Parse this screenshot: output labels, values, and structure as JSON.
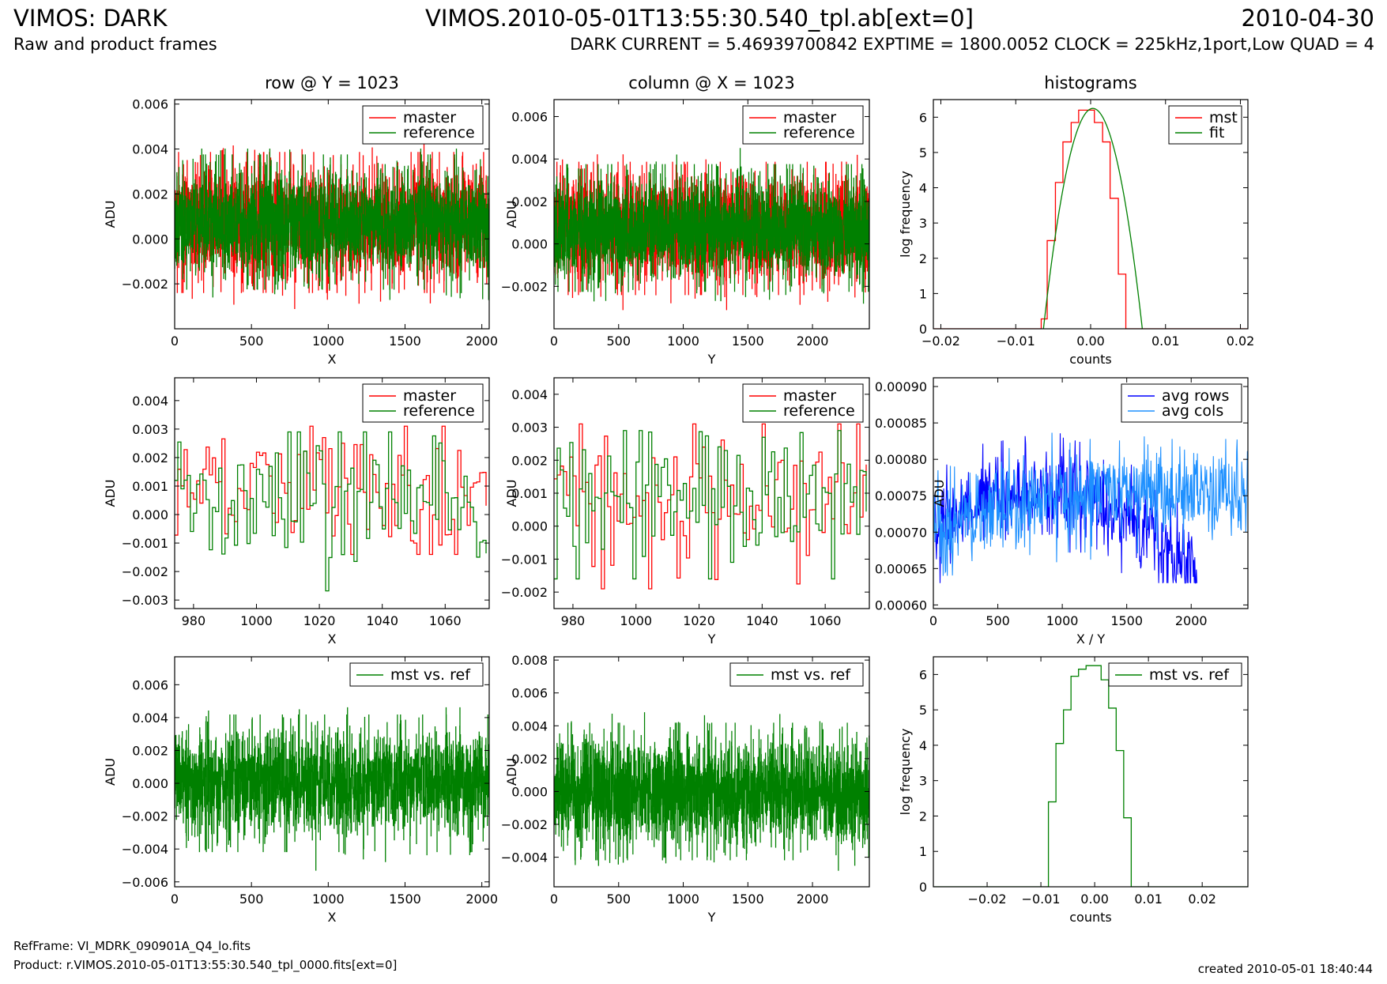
{
  "header": {
    "title_left": "VIMOS: DARK",
    "title_center": "VIMOS.2010-05-01T13:55:30.540_tpl.ab[ext=0]",
    "title_right": "2010-04-30",
    "subtitle_left": "Raw and product frames",
    "subtitle_right": "DARK CURRENT = 5.46939700842 EXPTIME = 1800.0052 CLOCK = 225kHz,1port,Low QUAD = 4"
  },
  "footer": {
    "refframe": "RefFrame: VI_MDRK_090901A_Q4_lo.fits",
    "product": "Product: r.VIMOS.2010-05-01T13:55:30.540_tpl_0000.fits[ext=0]",
    "created": "created 2010-05-01 18:40:44"
  },
  "colors": {
    "master": "#ff0000",
    "reference": "#008000",
    "avg_rows": "#0000ff",
    "avg_cols": "#1e90ff"
  },
  "chart_data": [
    {
      "id": "row-full",
      "type": "line",
      "title": "row @ Y = 1023",
      "xlabel": "X",
      "ylabel": "ADU",
      "xlim": [
        0,
        2048
      ],
      "ylim": [
        -0.004,
        0.0062
      ],
      "xticks": [
        0,
        500,
        1000,
        1500,
        2000
      ],
      "yticks": [
        -0.002,
        0.0,
        0.002,
        0.004,
        0.006
      ],
      "ytick_labels": [
        "−0.002",
        "0.000",
        "0.002",
        "0.004",
        "0.006"
      ],
      "legend": "top-right",
      "step": true,
      "series": [
        {
          "name": "master",
          "color": "#ff0000",
          "gen": {
            "n": 2048,
            "center": 0.00073,
            "spread": 0.0012,
            "min": -0.0031,
            "max": 0.0042,
            "seed": 11
          }
        },
        {
          "name": "reference",
          "color": "#008000",
          "gen": {
            "n": 2048,
            "center": 0.00075,
            "spread": 0.00115,
            "min": -0.0027,
            "max": 0.004,
            "seed": 12
          }
        }
      ]
    },
    {
      "id": "col-full",
      "type": "line",
      "title": "column @ X = 1023",
      "xlabel": "Y",
      "ylabel": "ADU",
      "xlim": [
        0,
        2440
      ],
      "ylim": [
        -0.004,
        0.0068
      ],
      "xticks": [
        0,
        500,
        1000,
        1500,
        2000
      ],
      "yticks": [
        -0.002,
        0.0,
        0.002,
        0.004,
        0.006
      ],
      "ytick_labels": [
        "−0.002",
        "0.000",
        "0.002",
        "0.004",
        "0.006"
      ],
      "legend": "top-right",
      "step": true,
      "series": [
        {
          "name": "master",
          "color": "#ff0000",
          "gen": {
            "n": 2440,
            "center": 0.00073,
            "spread": 0.0012,
            "min": -0.0031,
            "max": 0.0042,
            "seed": 21
          }
        },
        {
          "name": "reference",
          "color": "#008000",
          "gen": {
            "n": 2440,
            "center": 0.00075,
            "spread": 0.00115,
            "min": -0.0033,
            "max": 0.0045,
            "seed": 22
          }
        }
      ]
    },
    {
      "id": "hist-top",
      "type": "line",
      "title": "histograms",
      "xlabel": "counts",
      "ylabel": "log frequency",
      "xlim": [
        -0.021,
        0.021
      ],
      "ylim": [
        0,
        6.5
      ],
      "xticks": [
        -0.02,
        -0.01,
        0.0,
        0.01,
        0.02
      ],
      "xtick_labels": [
        "−0.02",
        "−0.01",
        "0.00",
        "0.01",
        "0.02"
      ],
      "yticks": [
        0,
        1,
        2,
        3,
        4,
        5,
        6
      ],
      "ytick_labels": [
        "0",
        "1",
        "2",
        "3",
        "4",
        "5",
        "6"
      ],
      "legend": "top-right",
      "series": [
        {
          "name": "mst",
          "color": "#ff0000",
          "step": true,
          "x": [
            -0.021,
            -0.0066,
            -0.0066,
            -0.0058,
            -0.0058,
            -0.0047,
            -0.0047,
            -0.0037,
            -0.0037,
            -0.0026,
            -0.0026,
            -0.0016,
            -0.0016,
            -0.0005,
            -0.0005,
            0.0005,
            0.0005,
            0.0016,
            0.0016,
            0.0026,
            0.0026,
            0.0037,
            0.0037,
            0.0047,
            0.0047,
            0.021
          ],
          "y": [
            0,
            0,
            0.28,
            0.28,
            2.5,
            2.5,
            4.15,
            4.15,
            5.3,
            5.3,
            5.85,
            5.85,
            6.2,
            6.2,
            6.2,
            6.2,
            5.85,
            5.85,
            5.3,
            5.3,
            3.7,
            3.7,
            1.55,
            1.55,
            0,
            0
          ]
        },
        {
          "name": "fit",
          "color": "#008000",
          "curve": {
            "peak": 6.25,
            "center": 0.0003,
            "half_width": 0.0066,
            "xmin": -0.021,
            "xmax": 0.021
          }
        }
      ]
    },
    {
      "id": "row-zoom",
      "type": "line",
      "title": "",
      "xlabel": "X",
      "ylabel": "ADU",
      "xlim": [
        974,
        1074
      ],
      "ylim": [
        -0.0033,
        0.0048
      ],
      "xticks": [
        980,
        1000,
        1020,
        1040,
        1060
      ],
      "yticks": [
        -0.003,
        -0.002,
        -0.001,
        0.0,
        0.001,
        0.002,
        0.003,
        0.004
      ],
      "ytick_labels": [
        "−0.003",
        "−0.002",
        "−0.001",
        "0.000",
        "0.001",
        "0.002",
        "0.003",
        "0.004"
      ],
      "legend": "top-right",
      "step": true,
      "series": [
        {
          "name": "master",
          "color": "#ff0000",
          "gen": {
            "x0": 974,
            "n": 100,
            "center": 0.0009,
            "spread": 0.0012,
            "min": -0.0014,
            "max": 0.0031,
            "seed": 31
          }
        },
        {
          "name": "reference",
          "color": "#008000",
          "gen": {
            "x0": 974,
            "n": 100,
            "center": 0.0007,
            "spread": 0.0013,
            "min": -0.0027,
            "max": 0.0029,
            "seed": 32
          }
        }
      ]
    },
    {
      "id": "col-zoom",
      "type": "line",
      "title": "",
      "xlabel": "Y",
      "ylabel": "ADU",
      "xlim": [
        974,
        1074
      ],
      "ylim": [
        -0.0025,
        0.0045
      ],
      "xticks": [
        980,
        1000,
        1020,
        1040,
        1060
      ],
      "yticks": [
        -0.002,
        -0.001,
        0.0,
        0.001,
        0.002,
        0.003,
        0.004
      ],
      "ytick_labels": [
        "−0.002",
        "−0.001",
        "0.000",
        "0.001",
        "0.002",
        "0.003",
        "0.004"
      ],
      "legend": "top-right",
      "step": true,
      "series": [
        {
          "name": "master",
          "color": "#ff0000",
          "gen": {
            "x0": 974,
            "n": 100,
            "center": 0.0009,
            "spread": 0.0012,
            "min": -0.0019,
            "max": 0.0031,
            "seed": 41
          }
        },
        {
          "name": "reference",
          "color": "#008000",
          "gen": {
            "x0": 974,
            "n": 100,
            "center": 0.0007,
            "spread": 0.0012,
            "min": -0.0016,
            "max": 0.0029,
            "seed": 42
          }
        }
      ]
    },
    {
      "id": "avg",
      "type": "line",
      "title": "",
      "xlabel": "X / Y",
      "ylabel": "ADU",
      "xlim": [
        0,
        2440
      ],
      "ylim": [
        0.000595,
        0.000912
      ],
      "xticks": [
        0,
        500,
        1000,
        1500,
        2000
      ],
      "yticks": [
        0.0006,
        0.00065,
        0.0007,
        0.00075,
        0.0008,
        0.00085,
        0.0009
      ],
      "ytick_labels": [
        "0.00060",
        "0.00065",
        "0.00070",
        "0.00075",
        "0.00080",
        "0.00085",
        "0.00090"
      ],
      "legend": "top-right",
      "series": [
        {
          "name": "avg rows",
          "color": "#0000ff",
          "gen": {
            "n": 2048,
            "step": 4,
            "center": 0.00074,
            "spread": 3e-05,
            "min": 0.00063,
            "max": 0.000838,
            "seed": 51,
            "shape": "rows"
          }
        },
        {
          "name": "avg cols",
          "color": "#1e90ff",
          "gen": {
            "n": 2440,
            "step": 4,
            "center": 0.00075,
            "spread": 3e-05,
            "min": 0.00064,
            "max": 0.000843,
            "seed": 52,
            "shape": "cols"
          }
        }
      ]
    },
    {
      "id": "diff-row",
      "type": "line",
      "title": "",
      "xlabel": "X",
      "ylabel": "ADU",
      "xlim": [
        0,
        2048
      ],
      "ylim": [
        -0.0063,
        0.0077
      ],
      "xticks": [
        0,
        500,
        1000,
        1500,
        2000
      ],
      "yticks": [
        -0.006,
        -0.004,
        -0.002,
        0.0,
        0.002,
        0.004,
        0.006
      ],
      "ytick_labels": [
        "−0.006",
        "−0.004",
        "−0.002",
        "0.000",
        "0.002",
        "0.004",
        "0.006"
      ],
      "legend": "top-right",
      "step": true,
      "series": [
        {
          "name": "mst vs. ref",
          "color": "#008000",
          "gen": {
            "n": 2048,
            "center": 0.0,
            "spread": 0.0016,
            "min": -0.0053,
            "max": 0.0046,
            "seed": 61
          }
        }
      ]
    },
    {
      "id": "diff-col",
      "type": "line",
      "title": "",
      "xlabel": "Y",
      "ylabel": "ADU",
      "xlim": [
        0,
        2440
      ],
      "ylim": [
        -0.0058,
        0.0082
      ],
      "xticks": [
        0,
        500,
        1000,
        1500,
        2000
      ],
      "yticks": [
        -0.004,
        -0.002,
        0.0,
        0.002,
        0.004,
        0.006,
        0.008
      ],
      "ytick_labels": [
        "−0.004",
        "−0.002",
        "0.000",
        "0.002",
        "0.004",
        "0.006",
        "0.008"
      ],
      "legend": "top-right",
      "step": true,
      "series": [
        {
          "name": "mst vs. ref",
          "color": "#008000",
          "gen": {
            "n": 2440,
            "center": 0.0,
            "spread": 0.0016,
            "min": -0.0048,
            "max": 0.0048,
            "seed": 71
          }
        }
      ]
    },
    {
      "id": "hist-bottom",
      "type": "line",
      "title": "",
      "xlabel": "counts",
      "ylabel": "log frequency",
      "xlim": [
        -0.03,
        0.0285
      ],
      "ylim": [
        0,
        6.5
      ],
      "xticks": [
        -0.02,
        -0.01,
        0.0,
        0.01,
        0.02
      ],
      "xtick_labels": [
        "−0.02",
        "−0.01",
        "0.00",
        "0.01",
        "0.02"
      ],
      "yticks": [
        0,
        1,
        2,
        3,
        4,
        5,
        6
      ],
      "ytick_labels": [
        "0",
        "1",
        "2",
        "3",
        "4",
        "5",
        "6"
      ],
      "legend": "top-right",
      "series": [
        {
          "name": "mst vs. ref",
          "color": "#008000",
          "step": true,
          "x": [
            -0.03,
            -0.0086,
            -0.0086,
            -0.0072,
            -0.0072,
            -0.0058,
            -0.0058,
            -0.0044,
            -0.0044,
            -0.003,
            -0.003,
            -0.0016,
            -0.0016,
            -0.0002,
            -0.0002,
            0.0012,
            0.0012,
            0.0026,
            0.0026,
            0.004,
            0.004,
            0.0054,
            0.0054,
            0.0068,
            0.0068,
            0.0285
          ],
          "y": [
            0,
            0,
            2.4,
            2.4,
            4.05,
            4.05,
            5.0,
            5.0,
            5.95,
            5.95,
            6.15,
            6.15,
            6.25,
            6.25,
            6.25,
            6.25,
            5.85,
            5.85,
            5.05,
            5.05,
            3.85,
            3.85,
            1.95,
            1.95,
            0,
            0
          ]
        }
      ]
    }
  ]
}
